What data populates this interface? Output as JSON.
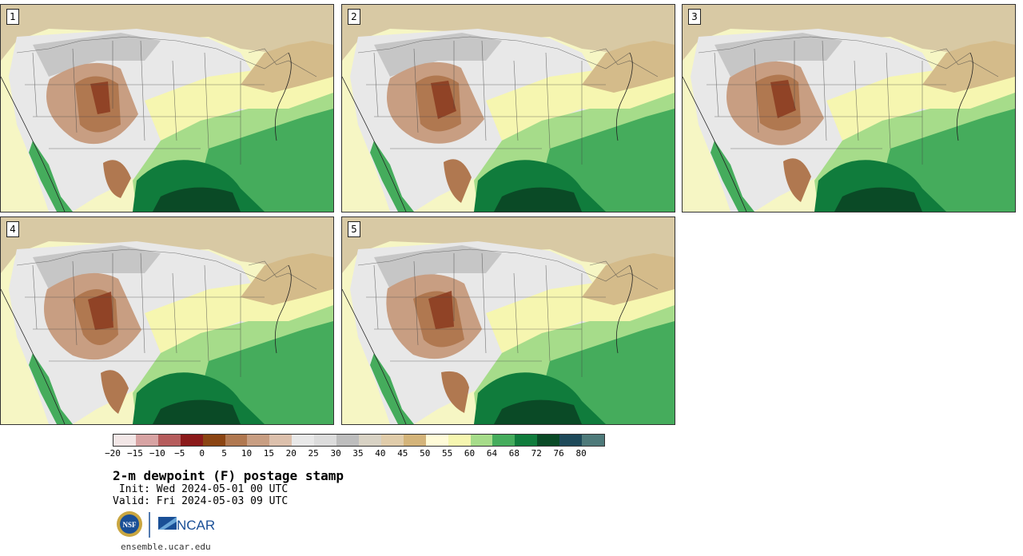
{
  "panels": [
    {
      "member": "1"
    },
    {
      "member": "2"
    },
    {
      "member": "3"
    },
    {
      "member": "4"
    },
    {
      "member": "5"
    }
  ],
  "colorbar": {
    "colors": [
      "#f2e6e6",
      "#d7a3a3",
      "#b55c5c",
      "#8b1a1a",
      "#8b4513",
      "#b07850",
      "#c89e82",
      "#dcc0ac",
      "#e8e8e8",
      "#dcdcdc",
      "#bdbdbd",
      "#d8d2c4",
      "#e0ccaa",
      "#d4b47a",
      "#fffbd8",
      "#f6f6b0",
      "#a6dc8a",
      "#45ac5c",
      "#107c3c",
      "#0a4a26",
      "#1e4a5a",
      "#4e7a7a"
    ],
    "ticks": [
      "−20",
      "−15",
      "−10",
      "−5",
      "0",
      "5",
      "10",
      "15",
      "20",
      "25",
      "30",
      "35",
      "40",
      "45",
      "50",
      "55",
      "60",
      "64",
      "68",
      "72",
      "76",
      "80"
    ]
  },
  "title": "2-m dewpoint (F) postage stamp",
  "init": " Init: Wed 2024-05-01 00 UTC",
  "valid": "Valid: Fri 2024-05-03 09 UTC",
  "logos": {
    "nsf": "NSF",
    "ncar": "NCAR"
  },
  "footer_url": "ensemble.ucar.edu",
  "map_colors": {
    "ocean_pacific": "#f6f6c4",
    "canada": "#d8c9a4",
    "dry_gray": "#bdbdbd",
    "light": "#e8e8e8",
    "brown_dark": "#8b3a1e",
    "brown": "#b07850",
    "brown_light": "#c89e82",
    "tan": "#d4bb8a",
    "yellow": "#f6f6b0",
    "green_light": "#a6dc8a",
    "green": "#45ac5c",
    "green_dark": "#107c3c",
    "green_darkest": "#0a4a26"
  }
}
